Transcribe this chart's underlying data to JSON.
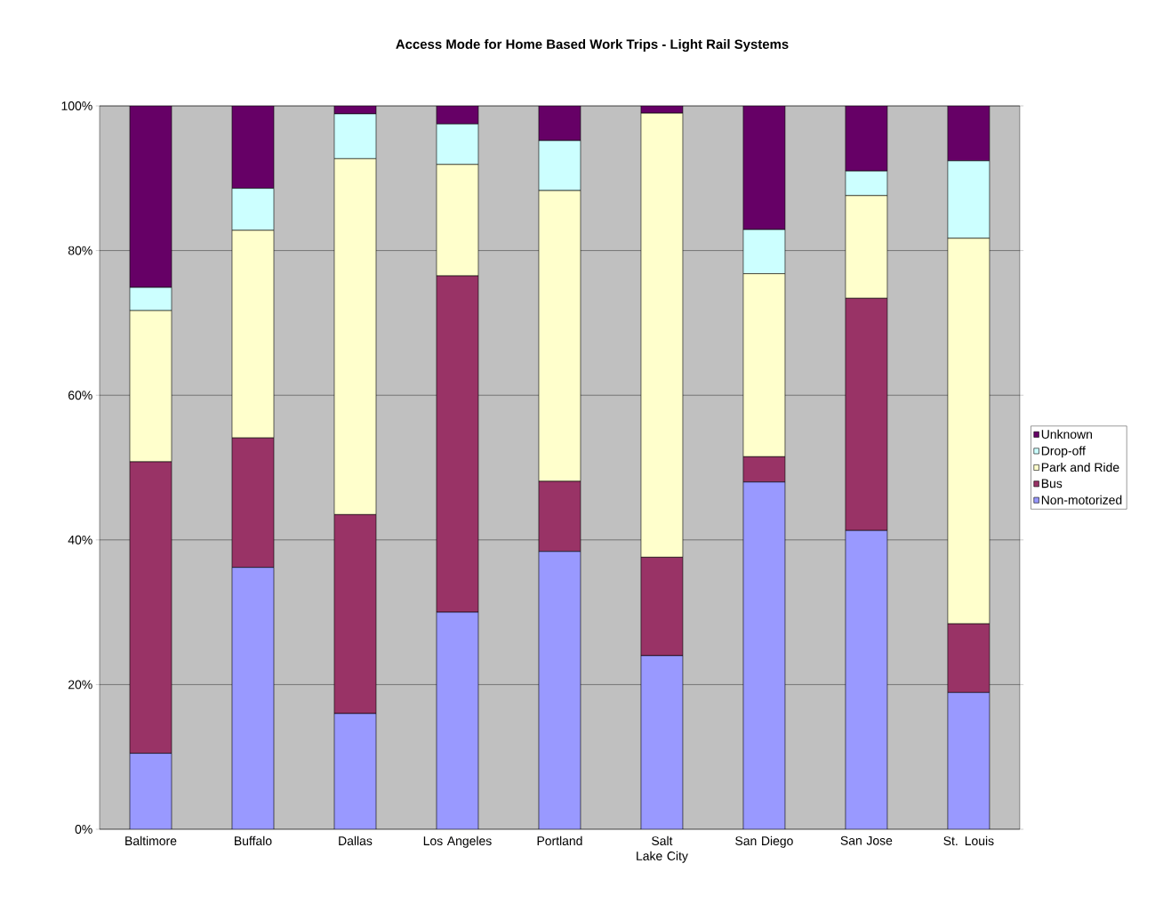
{
  "chart_data": {
    "type": "bar",
    "title": "Access Mode for Home Based Work Trips - Light Rail Systems",
    "categories": [
      "Baltimore",
      "Buffalo",
      "Dallas",
      "Los Angeles",
      "Portland",
      "Salt Lake City",
      "San Diego",
      "San Jose",
      "St. Louis"
    ],
    "stacked": true,
    "series": [
      {
        "name": "Non-motorized",
        "color": "#9999ff",
        "values": [
          10.5,
          36.2,
          16.0,
          30.0,
          38.4,
          24.0,
          48.0,
          41.3,
          18.9
        ]
      },
      {
        "name": "Bus",
        "color": "#993366",
        "values": [
          40.3,
          17.9,
          27.5,
          46.5,
          9.7,
          13.6,
          3.5,
          32.1,
          9.5
        ]
      },
      {
        "name": "Park and Ride",
        "color": "#ffffcc",
        "values": [
          20.9,
          28.7,
          49.2,
          15.4,
          40.2,
          61.4,
          25.3,
          14.2,
          53.3
        ]
      },
      {
        "name": "Drop-off",
        "color": "#ccffff",
        "values": [
          3.2,
          5.8,
          6.2,
          5.6,
          6.9,
          null,
          6.1,
          3.4,
          10.7
        ]
      },
      {
        "name": "Unknown",
        "color": "#660066",
        "values": [
          25.1,
          11.4,
          1.1,
          2.5,
          4.8,
          1.0,
          17.1,
          9.0,
          7.6
        ]
      }
    ],
    "ylim": [
      0,
      100
    ],
    "yticks": [
      {
        "value": 0,
        "label": "0%"
      },
      {
        "value": 20,
        "label": "20%"
      },
      {
        "value": 40,
        "label": "40%"
      },
      {
        "value": 60,
        "label": "60%"
      },
      {
        "value": 80,
        "label": "80%"
      },
      {
        "value": 100,
        "label": "100%"
      }
    ],
    "grid": "y",
    "legend": "right"
  }
}
